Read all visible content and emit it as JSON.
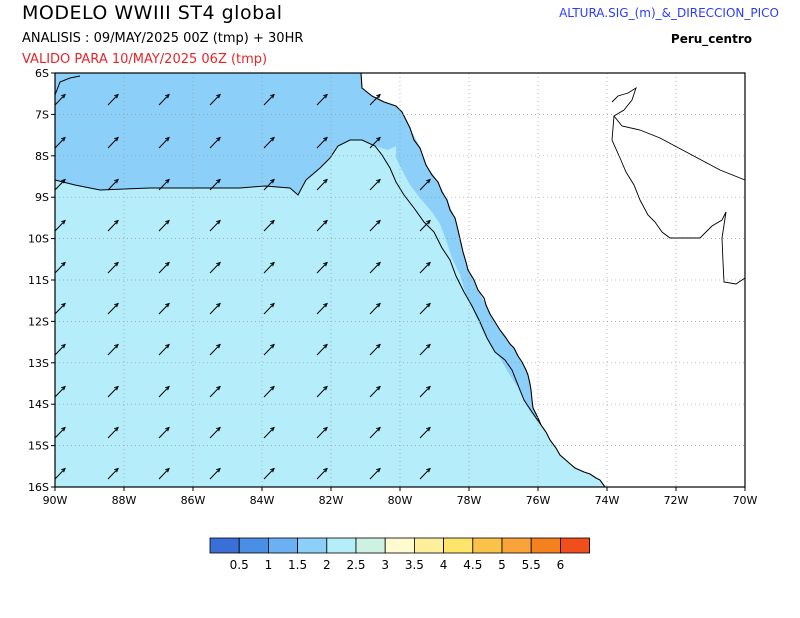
{
  "header": {
    "title": "MODELO WWIII ST4 global",
    "analysis": "ANALISIS : 09/MAY/2025 00Z  (tmp) + 30HR",
    "valid": "VALIDO PARA  10/MAY/2025 06Z  (tmp)",
    "variable": "ALTURA.SIG_(m)_&_DIRECCION_PICO",
    "region": "Peru_centro"
  },
  "map": {
    "lat_labels": [
      "6S",
      "7S",
      "8S",
      "9S",
      "10S",
      "11S",
      "12S",
      "13S",
      "14S",
      "15S",
      "16S"
    ],
    "lon_labels": [
      "90W",
      "88W",
      "86W",
      "84W",
      "82W",
      "80W",
      "78W",
      "76W",
      "74W",
      "72W",
      "70W"
    ],
    "colors": {
      "land": "#ffffff",
      "wave_1_5_2": "#8ccff8",
      "wave_2_2_5": "#b5eefa",
      "grid": "#9a9a9a"
    },
    "wave_direction": "northeast"
  },
  "colorbar": {
    "labels": [
      "0.5",
      "1",
      "1.5",
      "2",
      "2.5",
      "3",
      "3.5",
      "4",
      "4.5",
      "5",
      "5.5",
      "6"
    ],
    "colors": [
      "#3a6fd8",
      "#4b8ee6",
      "#6ab0f2",
      "#8ccff8",
      "#b5eefa",
      "#cdf2e4",
      "#fffbd1",
      "#ffee9c",
      "#fde46a",
      "#fbc24a",
      "#f8a43a",
      "#f5801e",
      "#f04f1c"
    ]
  }
}
